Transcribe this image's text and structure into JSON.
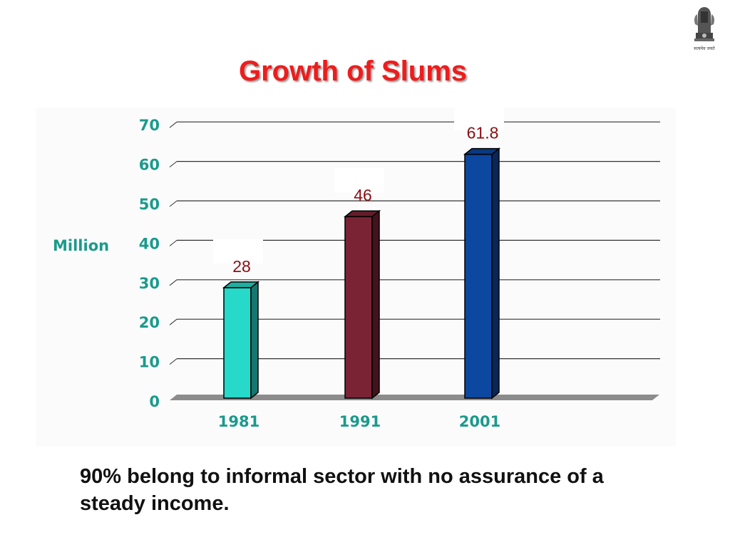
{
  "slide": {
    "title": "Growth of Slums",
    "caption": "90% belong to informal sector with no assurance of a steady income."
  },
  "emblem": {
    "icon": "state-emblem-of-india-icon",
    "motto": "सत्यमेव जयते"
  },
  "colors": {
    "title": "#ee1c1c",
    "axis_text": "#1a9a8c",
    "value_label": "#8b0d12",
    "gridline": "#333333",
    "floor": "#8c8c8c"
  },
  "chart_data": {
    "type": "bar",
    "categories": [
      "1981",
      "1991",
      "2001"
    ],
    "values": [
      28,
      46,
      61.8
    ],
    "value_labels": [
      "28",
      "46",
      "61.8"
    ],
    "bar_colors": [
      "#27d9c9",
      "#7a2335",
      "#0c47a0"
    ],
    "title": "",
    "xlabel": "",
    "ylabel": "Million",
    "ylim": [
      0,
      70
    ],
    "yticks": [
      "0",
      "10",
      "20",
      "30",
      "40",
      "50",
      "60",
      "70"
    ],
    "grid": true,
    "legend": "none",
    "style": "3d-bars"
  }
}
